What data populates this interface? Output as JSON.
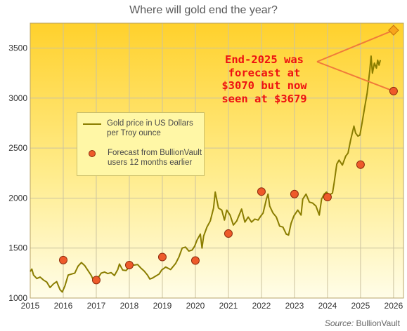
{
  "chart_data": {
    "type": "line",
    "title": "Where will gold end the year?",
    "xlabel": "",
    "ylabel": "",
    "xlim": [
      2015,
      2026.3
    ],
    "ylim": [
      1000,
      3750
    ],
    "x_ticks": [
      "2015",
      "2016",
      "2017",
      "2018",
      "2019",
      "2020",
      "2021",
      "2022",
      "2023",
      "2024",
      "2025",
      "2026"
    ],
    "y_ticks": [
      "1000",
      "1500",
      "2000",
      "2500",
      "3000",
      "3500"
    ],
    "grid": true,
    "legend_position": "center-left",
    "colors": {
      "price_line": "#8a7d00",
      "forecast_marker": "#ee5a2a",
      "annotation": "#ee1111",
      "diamond": "#f7a51c"
    },
    "series": [
      {
        "name": "Gold price in US Dollars per Troy ounce",
        "type": "line",
        "points": [
          [
            2015.0,
            1265
          ],
          [
            2015.05,
            1290
          ],
          [
            2015.1,
            1230
          ],
          [
            2015.2,
            1195
          ],
          [
            2015.3,
            1210
          ],
          [
            2015.4,
            1180
          ],
          [
            2015.5,
            1160
          ],
          [
            2015.6,
            1105
          ],
          [
            2015.7,
            1140
          ],
          [
            2015.8,
            1165
          ],
          [
            2015.9,
            1085
          ],
          [
            2015.97,
            1060
          ],
          [
            2016.05,
            1120
          ],
          [
            2016.15,
            1230
          ],
          [
            2016.25,
            1240
          ],
          [
            2016.35,
            1250
          ],
          [
            2016.45,
            1320
          ],
          [
            2016.55,
            1355
          ],
          [
            2016.65,
            1325
          ],
          [
            2016.75,
            1275
          ],
          [
            2016.85,
            1225
          ],
          [
            2016.95,
            1150
          ],
          [
            2017.05,
            1200
          ],
          [
            2017.15,
            1250
          ],
          [
            2017.25,
            1260
          ],
          [
            2017.35,
            1245
          ],
          [
            2017.45,
            1255
          ],
          [
            2017.55,
            1225
          ],
          [
            2017.65,
            1285
          ],
          [
            2017.7,
            1340
          ],
          [
            2017.8,
            1280
          ],
          [
            2017.9,
            1275
          ],
          [
            2017.97,
            1300
          ],
          [
            2018.05,
            1335
          ],
          [
            2018.15,
            1330
          ],
          [
            2018.25,
            1335
          ],
          [
            2018.35,
            1300
          ],
          [
            2018.45,
            1270
          ],
          [
            2018.55,
            1230
          ],
          [
            2018.62,
            1190
          ],
          [
            2018.7,
            1200
          ],
          [
            2018.8,
            1220
          ],
          [
            2018.9,
            1240
          ],
          [
            2018.98,
            1280
          ],
          [
            2019.1,
            1310
          ],
          [
            2019.25,
            1285
          ],
          [
            2019.4,
            1345
          ],
          [
            2019.5,
            1410
          ],
          [
            2019.6,
            1500
          ],
          [
            2019.7,
            1510
          ],
          [
            2019.8,
            1470
          ],
          [
            2019.9,
            1480
          ],
          [
            2019.98,
            1520
          ],
          [
            2020.05,
            1580
          ],
          [
            2020.15,
            1640
          ],
          [
            2020.2,
            1500
          ],
          [
            2020.25,
            1620
          ],
          [
            2020.35,
            1710
          ],
          [
            2020.45,
            1770
          ],
          [
            2020.55,
            1900
          ],
          [
            2020.6,
            2060
          ],
          [
            2020.7,
            1900
          ],
          [
            2020.8,
            1880
          ],
          [
            2020.88,
            1780
          ],
          [
            2020.95,
            1880
          ],
          [
            2021.05,
            1830
          ],
          [
            2021.15,
            1730
          ],
          [
            2021.25,
            1770
          ],
          [
            2021.4,
            1890
          ],
          [
            2021.5,
            1760
          ],
          [
            2021.6,
            1810
          ],
          [
            2021.7,
            1760
          ],
          [
            2021.8,
            1790
          ],
          [
            2021.9,
            1780
          ],
          [
            2021.98,
            1820
          ],
          [
            2022.05,
            1850
          ],
          [
            2022.15,
            1990
          ],
          [
            2022.2,
            2040
          ],
          [
            2022.25,
            1920
          ],
          [
            2022.35,
            1850
          ],
          [
            2022.45,
            1810
          ],
          [
            2022.55,
            1720
          ],
          [
            2022.65,
            1710
          ],
          [
            2022.75,
            1640
          ],
          [
            2022.82,
            1630
          ],
          [
            2022.9,
            1750
          ],
          [
            2022.98,
            1820
          ],
          [
            2023.1,
            1880
          ],
          [
            2023.2,
            1830
          ],
          [
            2023.25,
            1990
          ],
          [
            2023.35,
            2040
          ],
          [
            2023.45,
            1960
          ],
          [
            2023.55,
            1950
          ],
          [
            2023.65,
            1920
          ],
          [
            2023.75,
            1830
          ],
          [
            2023.82,
            1990
          ],
          [
            2023.9,
            2040
          ],
          [
            2023.97,
            2060
          ],
          [
            2024.05,
            2030
          ],
          [
            2024.15,
            2050
          ],
          [
            2024.2,
            2150
          ],
          [
            2024.28,
            2340
          ],
          [
            2024.35,
            2380
          ],
          [
            2024.45,
            2330
          ],
          [
            2024.55,
            2420
          ],
          [
            2024.62,
            2450
          ],
          [
            2024.7,
            2580
          ],
          [
            2024.8,
            2720
          ],
          [
            2024.85,
            2650
          ],
          [
            2024.92,
            2620
          ],
          [
            2024.98,
            2630
          ],
          [
            2025.05,
            2760
          ],
          [
            2025.12,
            2900
          ],
          [
            2025.2,
            3050
          ],
          [
            2025.28,
            3280
          ],
          [
            2025.32,
            3420
          ],
          [
            2025.36,
            3250
          ],
          [
            2025.42,
            3350
          ],
          [
            2025.48,
            3300
          ],
          [
            2025.52,
            3380
          ],
          [
            2025.56,
            3330
          ],
          [
            2025.6,
            3380
          ]
        ]
      },
      {
        "name": "Forecast from BullionVault users 12 months earlier",
        "type": "scatter",
        "points": [
          [
            2016,
            1380
          ],
          [
            2017,
            1180
          ],
          [
            2018,
            1330
          ],
          [
            2019,
            1410
          ],
          [
            2020,
            1375
          ],
          [
            2021,
            1645
          ],
          [
            2022,
            2065
          ],
          [
            2023,
            2040
          ],
          [
            2024,
            2010
          ],
          [
            2025,
            2335
          ],
          [
            2026,
            3070
          ]
        ]
      }
    ],
    "highlight": {
      "x": 2026,
      "y": 3679,
      "marker": "diamond"
    },
    "annotation": {
      "text": "End-2025 was\nforecast at\n$3070 but now\nseen at $3679"
    },
    "legend": [
      {
        "label": "Gold price in US Dollars per Troy ounce",
        "symbol": "line"
      },
      {
        "label": "Forecast from BullionVault users 12 months earlier",
        "symbol": "dot"
      }
    ],
    "source_prefix": "Source:",
    "source_name": "BullionVault"
  }
}
